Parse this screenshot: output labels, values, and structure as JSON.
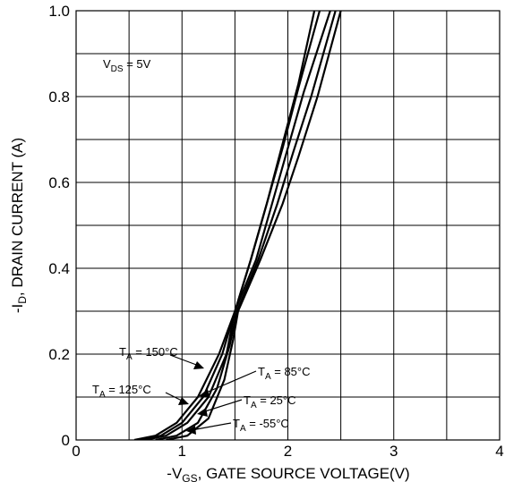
{
  "chart_data": {
    "type": "line",
    "xlabel": {
      "prefix": "-V",
      "sub": "GS",
      "suffix": ", GATE SOURCE VOLTAGE(V)"
    },
    "ylabel": {
      "prefix": "-I",
      "sub": "D",
      "suffix": ", DRAIN CURRENT (A)"
    },
    "xlim": [
      0,
      4
    ],
    "ylim": [
      0,
      1.0
    ],
    "xticks": [
      "0",
      "1",
      "2",
      "3",
      "4"
    ],
    "yticks": [
      "0",
      "0.2",
      "0.4",
      "0.6",
      "0.8",
      "1.0"
    ],
    "grid": true,
    "condition": {
      "prefix": "V",
      "sub": "DS",
      "suffix": " = 5V"
    },
    "series": [
      {
        "name": "T_A = 150°C",
        "label_prefix": "T",
        "label_sub": "A",
        "label_suffix": " = 150°C",
        "points": [
          [
            0.55,
            0
          ],
          [
            0.75,
            0.01
          ],
          [
            0.95,
            0.04
          ],
          [
            1.15,
            0.1
          ],
          [
            1.35,
            0.2
          ],
          [
            1.5,
            0.3
          ],
          [
            1.65,
            0.42
          ],
          [
            1.8,
            0.55
          ],
          [
            1.95,
            0.69
          ],
          [
            2.1,
            0.83
          ],
          [
            2.25,
            1.0
          ]
        ]
      },
      {
        "name": "T_A = 125°C",
        "label_prefix": "T",
        "label_sub": "A",
        "label_suffix": " = 125°C",
        "points": [
          [
            0.6,
            0
          ],
          [
            0.8,
            0.01
          ],
          [
            1.0,
            0.04
          ],
          [
            1.2,
            0.1
          ],
          [
            1.38,
            0.2
          ],
          [
            1.5,
            0.3
          ],
          [
            1.65,
            0.42
          ],
          [
            1.8,
            0.55
          ],
          [
            1.95,
            0.68
          ],
          [
            2.1,
            0.82
          ],
          [
            2.3,
            1.0
          ]
        ]
      },
      {
        "name": "T_A = 85°C",
        "label_prefix": "T",
        "label_sub": "A",
        "label_suffix": " = 85°C",
        "points": [
          [
            0.65,
            0
          ],
          [
            0.85,
            0.01
          ],
          [
            1.05,
            0.04
          ],
          [
            1.25,
            0.1
          ],
          [
            1.42,
            0.2
          ],
          [
            1.5,
            0.3
          ],
          [
            1.7,
            0.42
          ],
          [
            1.85,
            0.55
          ],
          [
            2.0,
            0.68
          ],
          [
            2.15,
            0.81
          ],
          [
            2.4,
            1.0
          ]
        ]
      },
      {
        "name": "T_A = 25°C",
        "label_prefix": "T",
        "label_sub": "A",
        "label_suffix": " = 25°C",
        "points": [
          [
            0.75,
            0
          ],
          [
            0.95,
            0.01
          ],
          [
            1.15,
            0.04
          ],
          [
            1.33,
            0.12
          ],
          [
            1.45,
            0.22
          ],
          [
            1.52,
            0.3
          ],
          [
            1.72,
            0.42
          ],
          [
            1.9,
            0.55
          ],
          [
            2.05,
            0.67
          ],
          [
            2.22,
            0.8
          ],
          [
            2.45,
            1.0
          ]
        ]
      },
      {
        "name": "T_A = -55°C",
        "label_prefix": "T",
        "label_sub": "A",
        "label_suffix": " = -55°C",
        "points": [
          [
            0.85,
            0
          ],
          [
            1.05,
            0.01
          ],
          [
            1.25,
            0.05
          ],
          [
            1.4,
            0.14
          ],
          [
            1.48,
            0.23
          ],
          [
            1.53,
            0.3
          ],
          [
            1.74,
            0.42
          ],
          [
            1.95,
            0.55
          ],
          [
            2.1,
            0.66
          ],
          [
            2.28,
            0.8
          ],
          [
            2.5,
            1.0
          ]
        ]
      }
    ]
  }
}
